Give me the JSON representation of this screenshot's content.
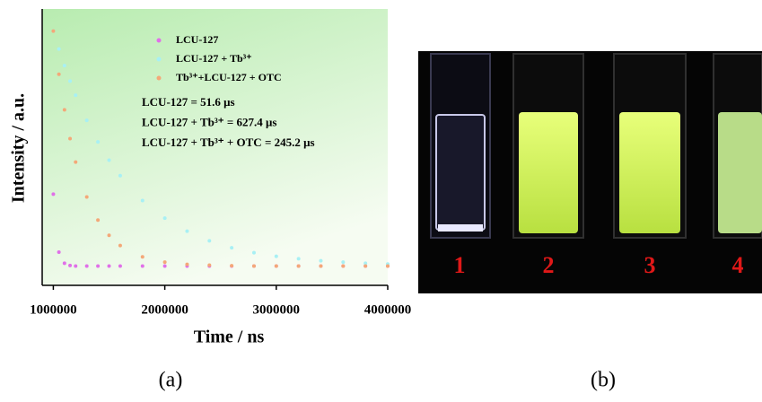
{
  "chart_data": {
    "type": "scatter",
    "xlabel": "Time / ns",
    "ylabel": "Intensity / a.u.",
    "x": [
      1000000,
      1050000,
      1100000,
      1150000,
      1200000,
      1300000,
      1400000,
      1500000,
      1600000,
      1800000,
      2000000,
      2200000,
      2400000,
      2600000,
      2800000,
      3000000,
      3200000,
      3400000,
      3600000,
      3800000,
      4000000
    ],
    "series": [
      {
        "name": "LCU-127",
        "color": "#e070e8",
        "values": [
          0.33,
          0.12,
          0.08,
          0.072,
          0.07,
          0.07,
          0.07,
          0.07,
          0.07,
          0.07,
          0.07,
          0.07,
          0.07,
          0.07,
          0.07,
          0.07,
          0.07,
          0.07,
          0.07,
          0.07,
          0.07
        ]
      },
      {
        "name": "LCU-127 + Tb³⁺",
        "color": "#a8f0f4",
        "values": [
          0.92,
          0.855,
          0.795,
          0.739,
          0.688,
          0.597,
          0.519,
          0.453,
          0.397,
          0.307,
          0.243,
          0.196,
          0.161,
          0.136,
          0.118,
          0.105,
          0.096,
          0.089,
          0.084,
          0.08,
          0.077
        ]
      },
      {
        "name": "Tb³⁺+LCU-127 + OTC",
        "color": "#f4a878",
        "values": [
          0.92,
          0.764,
          0.635,
          0.531,
          0.446,
          0.32,
          0.236,
          0.181,
          0.144,
          0.103,
          0.084,
          0.076,
          0.073,
          0.071,
          0.07,
          0.07,
          0.07,
          0.07,
          0.07,
          0.07,
          0.07
        ]
      }
    ],
    "annotations": [
      "LCU-127 = 51.6 μs",
      "LCU-127 + Tb³⁺ = 627.4 μs",
      "LCU-127 + Tb³⁺ + OTC = 245.2 μs"
    ],
    "xlim": [
      900000,
      4000000
    ],
    "xticks": [
      1000000,
      2000000,
      3000000,
      4000000
    ],
    "ylim": [
      0,
      1
    ]
  },
  "photo": {
    "cuvette_labels": [
      "1",
      "2",
      "3",
      "4"
    ]
  },
  "captions": [
    "(a)",
    "(b)"
  ]
}
